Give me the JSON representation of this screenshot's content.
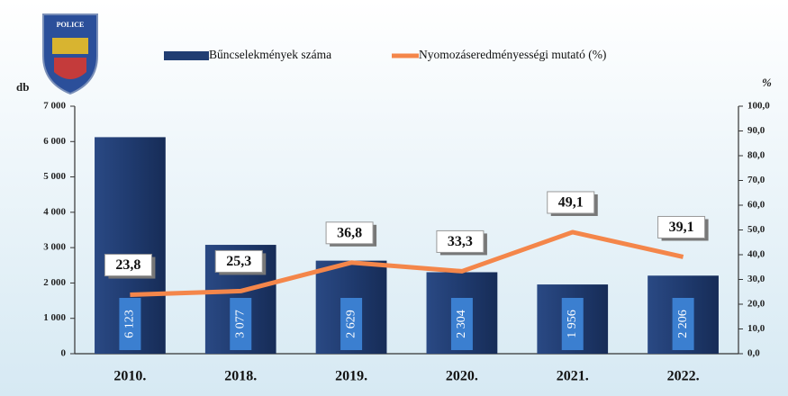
{
  "chart_data": {
    "type": "bar-line",
    "logo_text": "POLICE",
    "y_label": "db",
    "y2_label": "%",
    "categories": [
      "2010.",
      "2018.",
      "2019.",
      "2020.",
      "2021.",
      "2022."
    ],
    "series": [
      {
        "name": "Bűncselekmények száma",
        "type": "bar",
        "color": "#213d72",
        "values": [
          6123,
          3077,
          2629,
          2304,
          1956,
          2206
        ],
        "value_labels": [
          "6 123",
          "3 077",
          "2 629",
          "2 304",
          "1 956",
          "2 206"
        ]
      },
      {
        "name": "Nyomozáseredményességi mutató (%)",
        "type": "line",
        "axis": "y2",
        "color": "#f4864a",
        "values": [
          23.8,
          25.3,
          36.8,
          33.3,
          49.1,
          39.1
        ],
        "value_labels": [
          "23,8",
          "25,3",
          "36,8",
          "33,3",
          "49,1",
          "39,1"
        ]
      }
    ],
    "ylim": [
      0,
      7000
    ],
    "yticks": [
      0,
      {
        "value": 1000,
        "label": "1 000"
      },
      {
        "value": 2000,
        "label": "2 000"
      },
      {
        "value": 3000,
        "label": "3 000"
      },
      {
        "value": 4000,
        "label": "4 000"
      },
      {
        "value": 5000,
        "label": "5 000"
      },
      {
        "value": 6000,
        "label": "6 000"
      },
      {
        "value": 7000,
        "label": "7 000"
      }
    ],
    "y2lim": [
      0,
      100
    ],
    "y2ticks": [
      {
        "value": 0,
        "label": "0,0"
      },
      {
        "value": 10,
        "label": "10,0"
      },
      {
        "value": 20,
        "label": "20,0"
      },
      {
        "value": 30,
        "label": "30,0"
      },
      {
        "value": 40,
        "label": "40,0"
      },
      {
        "value": 50,
        "label": "50,0"
      },
      {
        "value": 60,
        "label": "60,0"
      },
      {
        "value": 70,
        "label": "70,0"
      },
      {
        "value": 80,
        "label": "80,0"
      },
      {
        "value": 90,
        "label": "90,0"
      },
      {
        "value": 100,
        "label": "100,0"
      }
    ]
  }
}
